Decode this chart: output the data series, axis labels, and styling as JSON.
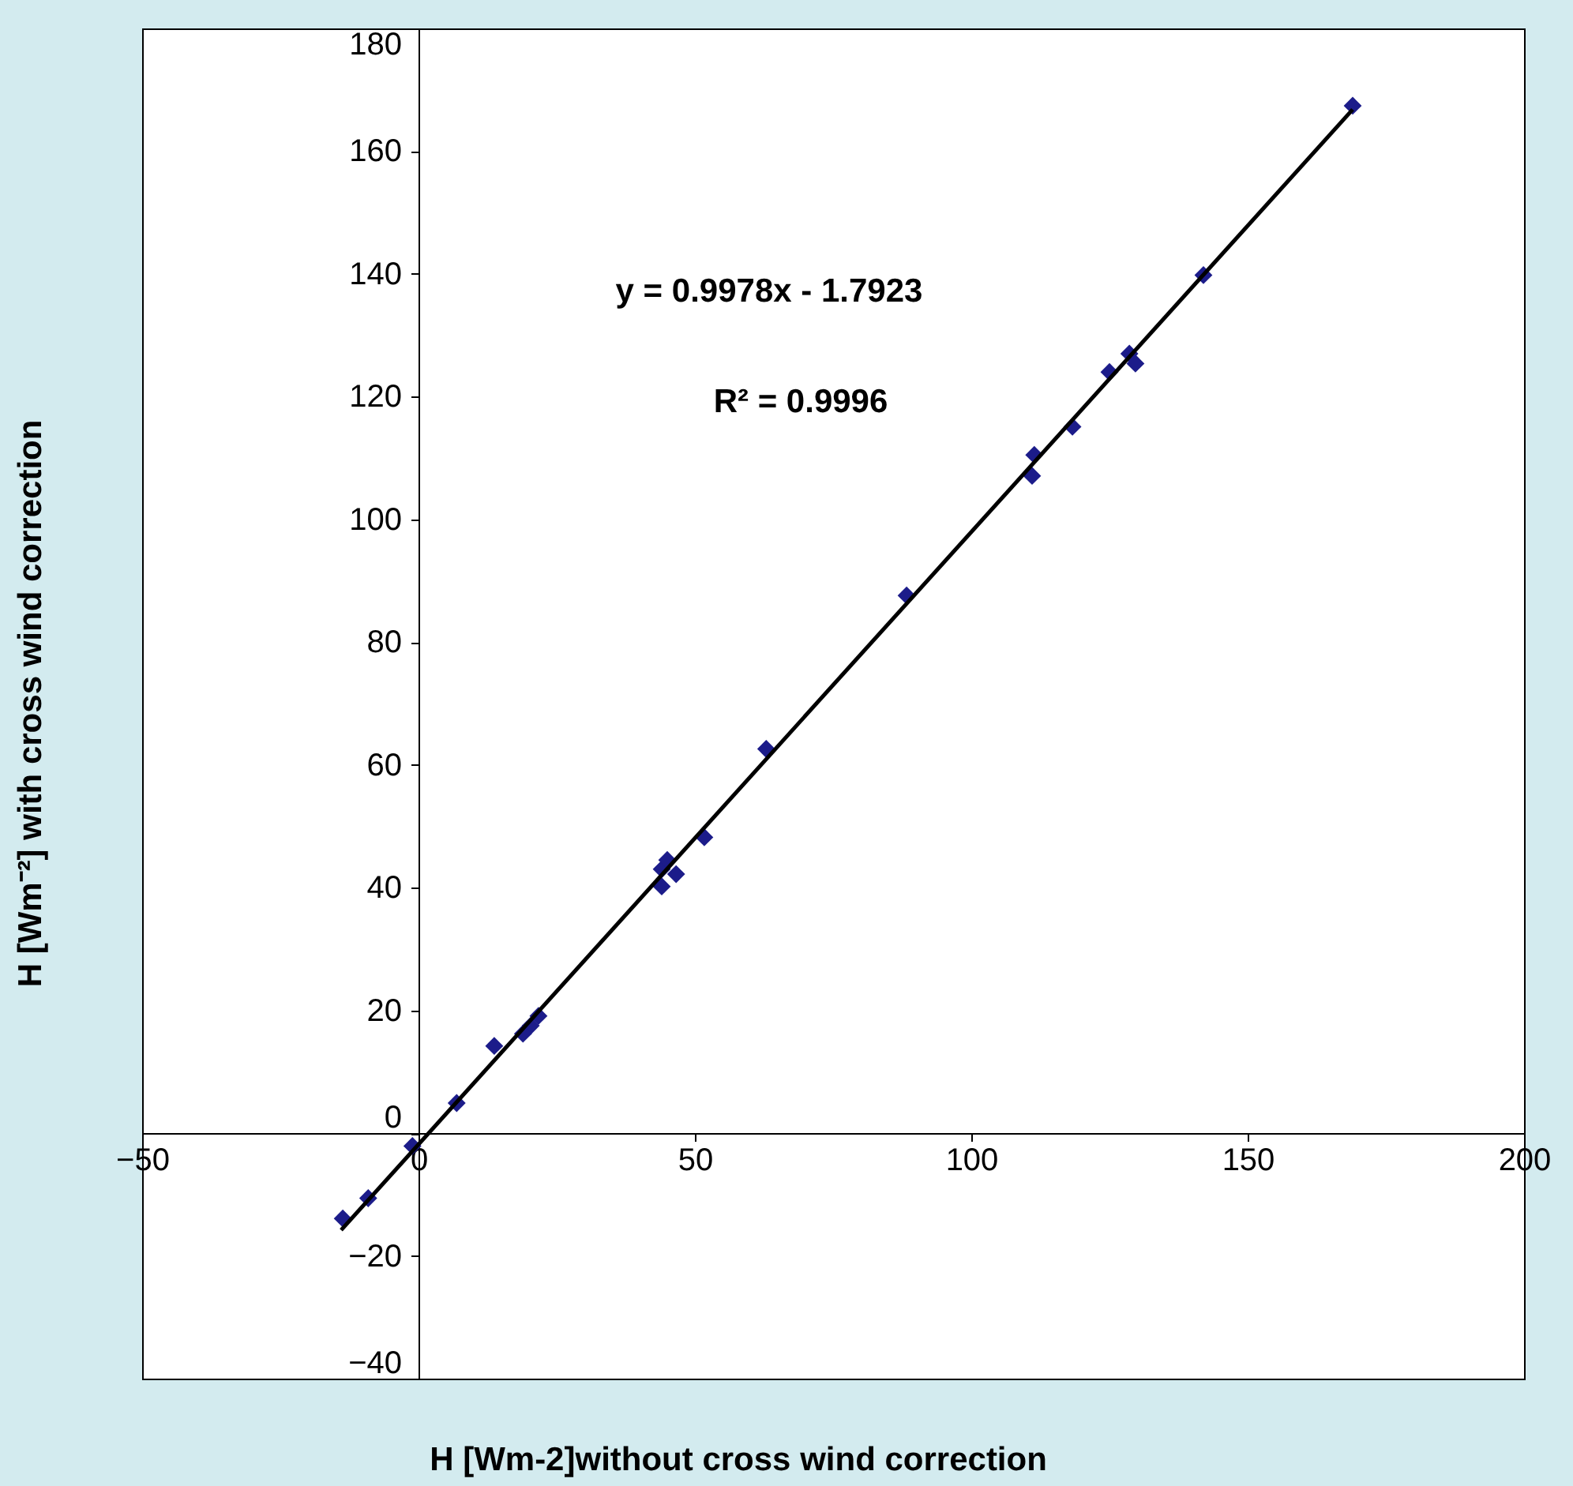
{
  "chart_data": {
    "type": "scatter",
    "xlabel": "H [Wm-2]without cross wind correction",
    "ylabel": "H [Wm⁻²] with cross wind correction",
    "annotations": [
      "y = 0.9978x - 1.7923",
      "R² = 0.9996"
    ],
    "xlim": [
      -50,
      200
    ],
    "xticks": [
      -50,
      0,
      50,
      100,
      150,
      200
    ],
    "ylim": [
      -40,
      180
    ],
    "yticks": [
      -40,
      -20,
      0,
      20,
      40,
      60,
      80,
      100,
      120,
      140,
      160,
      180
    ],
    "grid": false,
    "series": [
      {
        "color": "#1c1c8a",
        "marker": "diamond",
        "x": [
          169,
          142,
          125,
          128.6,
          129.7,
          118.3,
          111.4,
          111,
          88.3,
          62.9,
          51.7,
          44,
          45,
          44,
          46.6,
          21.7,
          20.3,
          18.9,
          13.7,
          6.9,
          -1.1,
          -9.1,
          -13.7
        ],
        "values": [
          167.4,
          139.8,
          124,
          127,
          125.4,
          115.1,
          110.5,
          107.1,
          87.6,
          62.6,
          48.2,
          43,
          44.5,
          40.2,
          42.2,
          19.1,
          17.5,
          16.2,
          14.2,
          4.9,
          -2.1,
          -10.6,
          -13.9
        ]
      },
      {
        "type": "line",
        "color": "#000000",
        "line_style": "solid",
        "x": [
          -14,
          169
        ],
        "values": [
          -15.8,
          166.8
        ]
      }
    ]
  }
}
